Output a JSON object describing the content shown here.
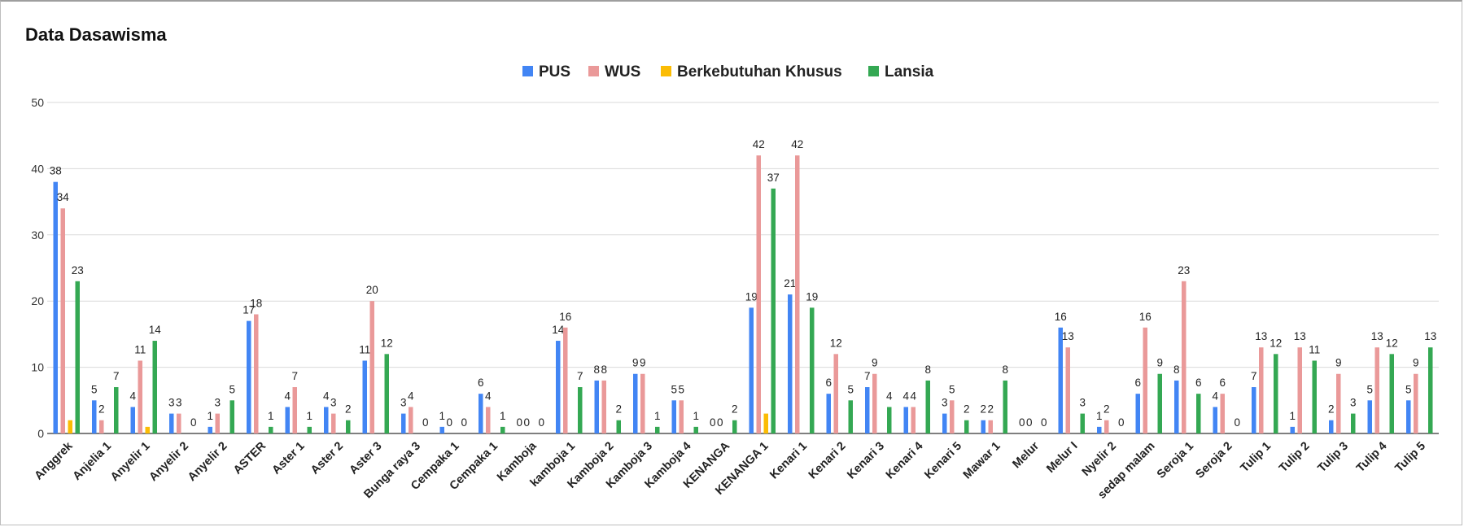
{
  "colors": {
    "PUS": "#4285f4",
    "WUS": "#ea9999",
    "Berkebutuhan Khusus": "#fbbc04",
    "Lansia": "#34a853"
  },
  "chart_data": {
    "type": "bar",
    "title": "Data Dasawisma",
    "xlabel": "",
    "ylabel": "",
    "ylim": [
      0,
      50
    ],
    "yticks": [
      0,
      10,
      20,
      30,
      40,
      50
    ],
    "grid": true,
    "legend_position": "top",
    "categories": [
      "Anggrek",
      "Anjelia 1",
      "Anyelir 1",
      "Anyelir 2",
      "Anyelir 2",
      "ASTER",
      "Aster 1",
      "Aster 2",
      "Aster 3",
      "Bunga raya 3",
      "Cempaka 1",
      "Cempaka 1",
      "Kamboja",
      "kamboja 1",
      "Kamboja 2",
      "Kamboja 3",
      "Kamboja 4",
      "KENANGA",
      "KENANGA 1",
      "Kenari 1",
      "Kenari 2",
      "Kenari 3",
      "Kenari 4",
      "Kenari 5",
      "Mawar 1",
      "Melur",
      "Melur I",
      "Nyelir 2",
      "sedap malam",
      "Seroja 1",
      "Seroja 2",
      "Tulip 1",
      "Tulip 2",
      "Tulip 3",
      "Tulip 4",
      "Tulip 5"
    ],
    "series": [
      {
        "name": "PUS",
        "values": [
          38,
          5,
          4,
          3,
          1,
          17,
          4,
          4,
          11,
          3,
          1,
          6,
          0,
          14,
          8,
          9,
          5,
          0,
          19,
          21,
          6,
          7,
          4,
          3,
          2,
          0,
          16,
          1,
          6,
          8,
          4,
          7,
          1,
          2,
          5,
          5
        ]
      },
      {
        "name": "WUS",
        "values": [
          34,
          2,
          11,
          3,
          3,
          18,
          7,
          3,
          20,
          4,
          0,
          4,
          0,
          16,
          8,
          9,
          5,
          0,
          42,
          42,
          12,
          9,
          4,
          5,
          2,
          0,
          13,
          2,
          16,
          23,
          6,
          13,
          13,
          9,
          13,
          9
        ]
      },
      {
        "name": "Berkebutuhan Khusus",
        "values": [
          2,
          0,
          1,
          0,
          0,
          0,
          0,
          0,
          0,
          0,
          0,
          0,
          0,
          0,
          0,
          0,
          0,
          0,
          3,
          0,
          0,
          0,
          0,
          0,
          0,
          0,
          0,
          0,
          0,
          0,
          0,
          0,
          0,
          0,
          0,
          0
        ]
      },
      {
        "name": "Lansia",
        "values": [
          23,
          7,
          14,
          0,
          5,
          1,
          1,
          2,
          12,
          0,
          0,
          1,
          0,
          7,
          2,
          1,
          1,
          2,
          37,
          19,
          5,
          4,
          8,
          2,
          8,
          0,
          3,
          0,
          9,
          6,
          0,
          12,
          11,
          3,
          12,
          13
        ]
      }
    ]
  }
}
